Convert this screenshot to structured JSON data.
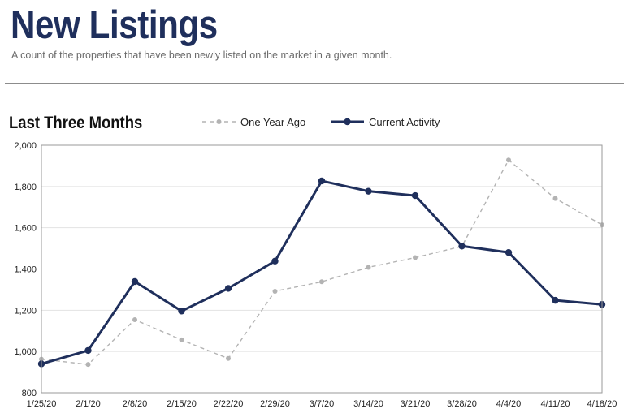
{
  "header": {
    "title": "New Listings",
    "subtitle": "A count of the properties that have been newly listed on the market in a given month."
  },
  "section": {
    "title": "Last Three Months"
  },
  "colors": {
    "current": "#1f2f5c",
    "prior": "#b3b3b3",
    "gridline": "#e2e2e2",
    "frame": "#9a9a9a"
  },
  "chart_data": {
    "type": "line",
    "title": "Last Three Months",
    "categories": [
      "1/25/20",
      "2/1/20",
      "2/8/20",
      "2/15/20",
      "2/22/20",
      "2/29/20",
      "3/7/20",
      "3/14/20",
      "3/21/20",
      "3/28/20",
      "4/4/20",
      "4/11/20",
      "4/18/20"
    ],
    "series": [
      {
        "name": "One Year Ago",
        "style": "dashed",
        "values": [
          963,
          937,
          1154,
          1056,
          966,
          1292,
          1338,
          1408,
          1455,
          1510,
          1928,
          1742,
          1614
        ]
      },
      {
        "name": "Current Activity",
        "style": "solid",
        "values": [
          940,
          1005,
          1339,
          1196,
          1306,
          1438,
          1827,
          1777,
          1756,
          1511,
          1480,
          1248,
          1228
        ]
      }
    ],
    "y_ticks": [
      "800",
      "1,000",
      "1,200",
      "1,400",
      "1,600",
      "1,800",
      "2,000"
    ],
    "ylim": [
      800,
      2000
    ],
    "grid": true,
    "legend": "top-center"
  }
}
